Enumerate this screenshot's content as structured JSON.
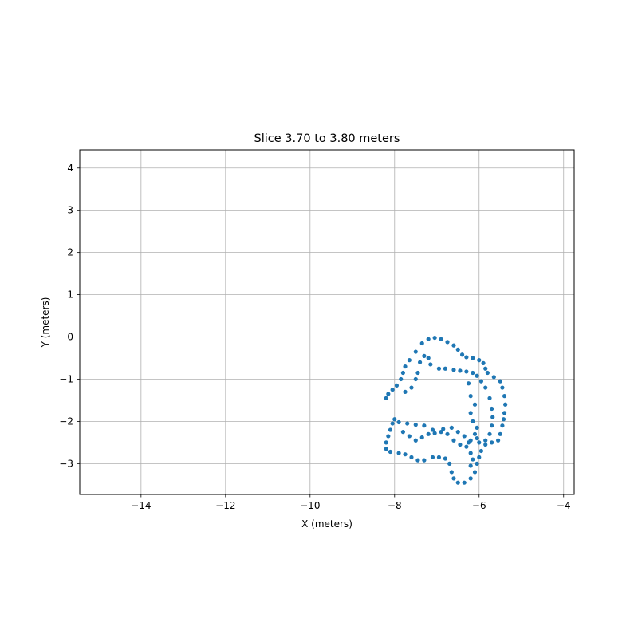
{
  "chart_data": {
    "type": "scatter",
    "title": "Slice 3.70 to 3.80 meters",
    "xlabel": "X (meters)",
    "ylabel": "Y (meters)",
    "xlim": [
      -15.45,
      -3.75
    ],
    "ylim": [
      -3.73,
      4.43
    ],
    "xticks": [
      -14,
      -12,
      -10,
      -8,
      -6,
      -4
    ],
    "yticks": [
      -3,
      -2,
      -1,
      0,
      1,
      2,
      3,
      4
    ],
    "xtick_labels": [
      "−14",
      "−12",
      "−10",
      "−8",
      "−6",
      "−4"
    ],
    "ytick_labels": [
      "−3",
      "−2",
      "−1",
      "0",
      "1",
      "2",
      "3",
      "4"
    ],
    "grid": true,
    "marker_color": "#1f77b4",
    "series": [
      {
        "points": [
          [
            -8.2,
            -1.45
          ],
          [
            -8.15,
            -1.35
          ],
          [
            -8.05,
            -1.25
          ],
          [
            -7.95,
            -1.15
          ],
          [
            -7.85,
            -1.0
          ],
          [
            -7.8,
            -0.85
          ],
          [
            -7.75,
            -0.7
          ],
          [
            -7.65,
            -0.55
          ],
          [
            -7.5,
            -0.35
          ],
          [
            -7.35,
            -0.15
          ],
          [
            -7.2,
            -0.05
          ],
          [
            -7.05,
            -0.02
          ],
          [
            -6.9,
            -0.05
          ],
          [
            -6.75,
            -0.12
          ],
          [
            -6.6,
            -0.2
          ],
          [
            -6.5,
            -0.3
          ],
          [
            -6.4,
            -0.42
          ],
          [
            -6.3,
            -0.48
          ],
          [
            -6.15,
            -0.5
          ],
          [
            -6.0,
            -0.55
          ],
          [
            -5.9,
            -0.62
          ],
          [
            -5.85,
            -0.75
          ],
          [
            -5.8,
            -0.85
          ],
          [
            -5.65,
            -0.95
          ],
          [
            -5.5,
            -1.05
          ],
          [
            -5.45,
            -1.2
          ],
          [
            -5.4,
            -1.4
          ],
          [
            -5.38,
            -1.6
          ],
          [
            -5.4,
            -1.8
          ],
          [
            -5.42,
            -1.95
          ],
          [
            -5.45,
            -2.1
          ],
          [
            -5.5,
            -2.3
          ],
          [
            -5.55,
            -2.45
          ],
          [
            -5.7,
            -2.5
          ],
          [
            -5.85,
            -2.55
          ],
          [
            -5.95,
            -2.7
          ],
          [
            -6.0,
            -2.85
          ],
          [
            -6.05,
            -3.0
          ],
          [
            -6.1,
            -3.2
          ],
          [
            -6.2,
            -3.35
          ],
          [
            -6.35,
            -3.45
          ],
          [
            -6.5,
            -3.45
          ],
          [
            -6.6,
            -3.35
          ],
          [
            -6.65,
            -3.2
          ],
          [
            -6.7,
            -3.0
          ],
          [
            -6.8,
            -2.88
          ],
          [
            -6.95,
            -2.85
          ],
          [
            -7.1,
            -2.85
          ],
          [
            -7.3,
            -2.92
          ],
          [
            -7.45,
            -2.92
          ],
          [
            -7.6,
            -2.85
          ],
          [
            -7.75,
            -2.78
          ],
          [
            -7.9,
            -2.75
          ],
          [
            -8.1,
            -2.72
          ],
          [
            -8.2,
            -2.65
          ],
          [
            -8.2,
            -2.5
          ],
          [
            -8.15,
            -2.35
          ],
          [
            -8.1,
            -2.2
          ],
          [
            -8.05,
            -2.05
          ],
          [
            -8.0,
            -1.95
          ],
          [
            -7.75,
            -1.3
          ],
          [
            -7.6,
            -1.2
          ],
          [
            -7.5,
            -1.0
          ],
          [
            -7.45,
            -0.85
          ],
          [
            -7.4,
            -0.6
          ],
          [
            -7.3,
            -0.45
          ],
          [
            -7.2,
            -0.5
          ],
          [
            -7.15,
            -0.65
          ],
          [
            -6.95,
            -0.75
          ],
          [
            -6.8,
            -0.75
          ],
          [
            -6.6,
            -0.78
          ],
          [
            -6.45,
            -0.8
          ],
          [
            -6.3,
            -0.82
          ],
          [
            -6.15,
            -0.85
          ],
          [
            -6.05,
            -0.92
          ],
          [
            -5.95,
            -1.05
          ],
          [
            -5.85,
            -1.2
          ],
          [
            -5.75,
            -1.45
          ],
          [
            -5.7,
            -1.7
          ],
          [
            -5.68,
            -1.9
          ],
          [
            -5.7,
            -2.1
          ],
          [
            -5.75,
            -2.3
          ],
          [
            -5.85,
            -2.45
          ],
          [
            -6.0,
            -2.5
          ],
          [
            -6.25,
            -1.1
          ],
          [
            -6.2,
            -1.4
          ],
          [
            -6.1,
            -1.6
          ],
          [
            -6.2,
            -1.8
          ],
          [
            -6.15,
            -2.0
          ],
          [
            -6.05,
            -2.15
          ],
          [
            -6.1,
            -2.3
          ],
          [
            -6.2,
            -2.45
          ],
          [
            -7.8,
            -2.25
          ],
          [
            -7.65,
            -2.35
          ],
          [
            -7.5,
            -2.45
          ],
          [
            -7.35,
            -2.38
          ],
          [
            -7.2,
            -2.3
          ],
          [
            -7.05,
            -2.28
          ],
          [
            -6.9,
            -2.25
          ],
          [
            -6.75,
            -2.3
          ],
          [
            -6.6,
            -2.45
          ],
          [
            -6.45,
            -2.55
          ],
          [
            -6.3,
            -2.6
          ],
          [
            -6.2,
            -2.75
          ],
          [
            -6.15,
            -2.9
          ],
          [
            -6.2,
            -3.05
          ],
          [
            -7.9,
            -2.02
          ],
          [
            -7.7,
            -2.05
          ],
          [
            -7.5,
            -2.08
          ],
          [
            -7.3,
            -2.1
          ],
          [
            -7.1,
            -2.2
          ],
          [
            -6.85,
            -2.18
          ],
          [
            -6.65,
            -2.15
          ],
          [
            -6.5,
            -2.25
          ],
          [
            -6.35,
            -2.35
          ],
          [
            -6.25,
            -2.5
          ],
          [
            -6.05,
            -2.4
          ]
        ]
      }
    ]
  }
}
